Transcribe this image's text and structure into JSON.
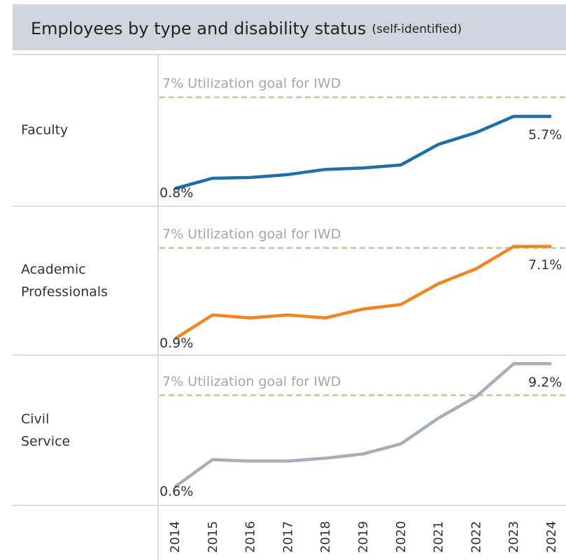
{
  "chart_data": {
    "type": "line",
    "title": "Employees by type and disability status",
    "subtitle": "(self-identified)",
    "categories": [
      "2014",
      "2015",
      "2016",
      "2017",
      "2018",
      "2019",
      "2020",
      "2021",
      "2022",
      "2023",
      "2024"
    ],
    "goal_color": "#b3cf9a",
    "panels": [
      {
        "name": "Faculty",
        "color": "#1f6fa6",
        "values": [
          0.8,
          1.5,
          1.55,
          1.75,
          2.1,
          2.2,
          2.4,
          3.8,
          4.6,
          5.7,
          5.7
        ],
        "value_labels": [
          "0.8%",
          null,
          null,
          null,
          null,
          null,
          null,
          null,
          null,
          null,
          "5.7%"
        ],
        "ylim": [
          -0.4,
          9.9
        ],
        "goal": {
          "value": 7,
          "label": "7% Utilization goal for IWD"
        }
      },
      {
        "name": "Academic Professionals",
        "color": "#f5841f",
        "values": [
          0.9,
          2.5,
          2.3,
          2.5,
          2.3,
          2.9,
          3.2,
          4.6,
          5.6,
          7.1,
          7.1
        ],
        "value_labels": [
          "0.9%",
          null,
          null,
          null,
          null,
          null,
          null,
          null,
          null,
          null,
          "7.1%"
        ],
        "ylim": [
          -0.2,
          9.8
        ],
        "goal": {
          "value": 7,
          "label": "7% Utilization goal for IWD"
        }
      },
      {
        "name": "Civil Service",
        "color": "#a6aeb9",
        "values": [
          0.6,
          2.5,
          2.4,
          2.4,
          2.6,
          2.9,
          3.6,
          5.4,
          6.9,
          9.2,
          9.2
        ],
        "value_labels": [
          "0.6%",
          null,
          null,
          null,
          null,
          null,
          null,
          null,
          null,
          null,
          "9.2%"
        ],
        "ylim": [
          -0.7,
          9.8
        ],
        "goal": {
          "value": 7,
          "label": "7% Utilization goal for IWD"
        }
      }
    ]
  }
}
